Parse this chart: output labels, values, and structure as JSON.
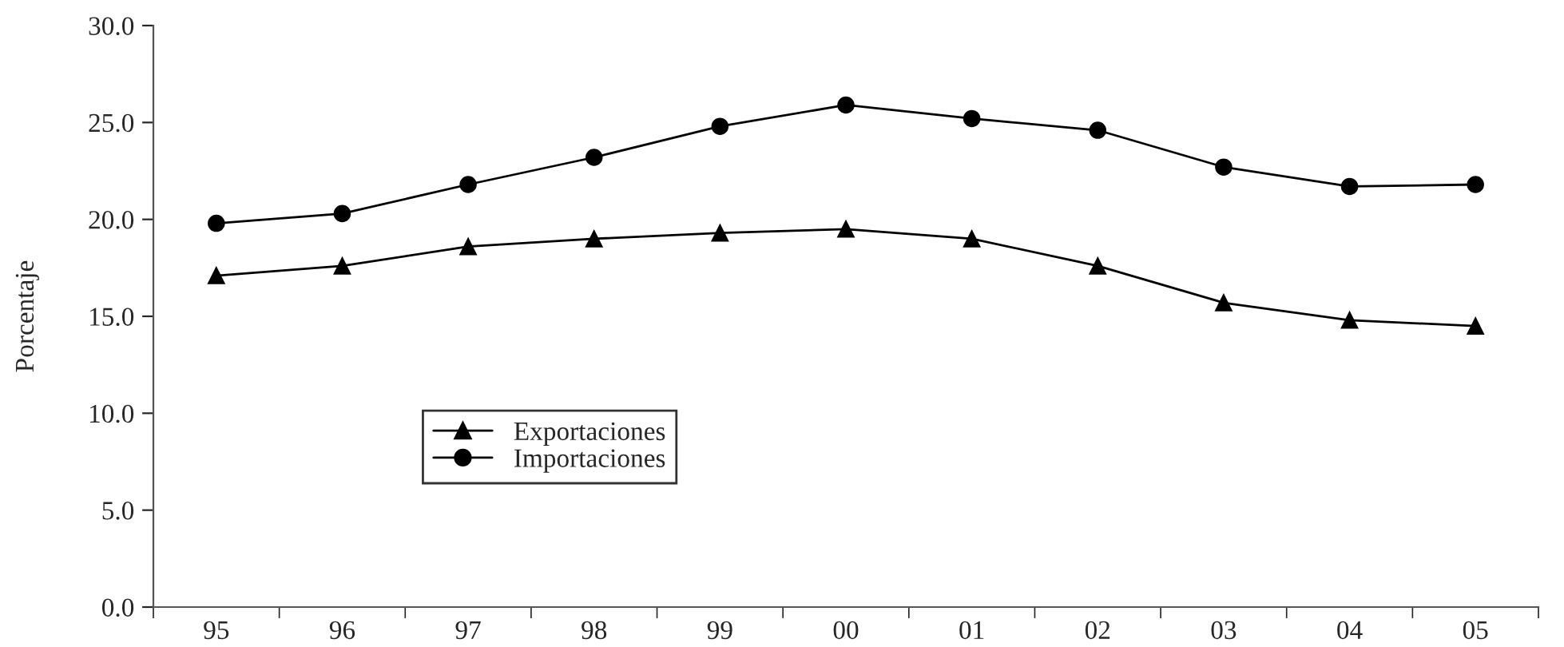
{
  "chart_data": {
    "type": "line",
    "ylabel": "Porcentaje",
    "categories": [
      "95",
      "96",
      "97",
      "98",
      "99",
      "00",
      "01",
      "02",
      "03",
      "04",
      "05"
    ],
    "series": [
      {
        "name": "Exportaciones",
        "color": "#000000",
        "marker": "triangle",
        "values": [
          17.1,
          17.6,
          18.6,
          19.0,
          19.3,
          19.5,
          19.0,
          17.6,
          15.7,
          14.8,
          14.5
        ]
      },
      {
        "name": "Importaciones",
        "color": "#000000",
        "marker": "circle",
        "values": [
          19.8,
          20.3,
          21.8,
          23.2,
          24.8,
          25.9,
          25.2,
          24.6,
          22.7,
          21.7,
          21.8
        ]
      }
    ],
    "ylim": [
      0,
      30
    ],
    "yticks": [
      {
        "value": 0,
        "label": "0.0"
      },
      {
        "value": 5,
        "label": "5.0"
      },
      {
        "value": 10,
        "label": "10.0"
      },
      {
        "value": 15,
        "label": "15.0"
      },
      {
        "value": 20,
        "label": "20.0"
      },
      {
        "value": 25,
        "label": "25.0"
      },
      {
        "value": 30,
        "label": "30.0"
      }
    ],
    "grid": false,
    "legend": "bottom left",
    "line_style": "solid"
  }
}
